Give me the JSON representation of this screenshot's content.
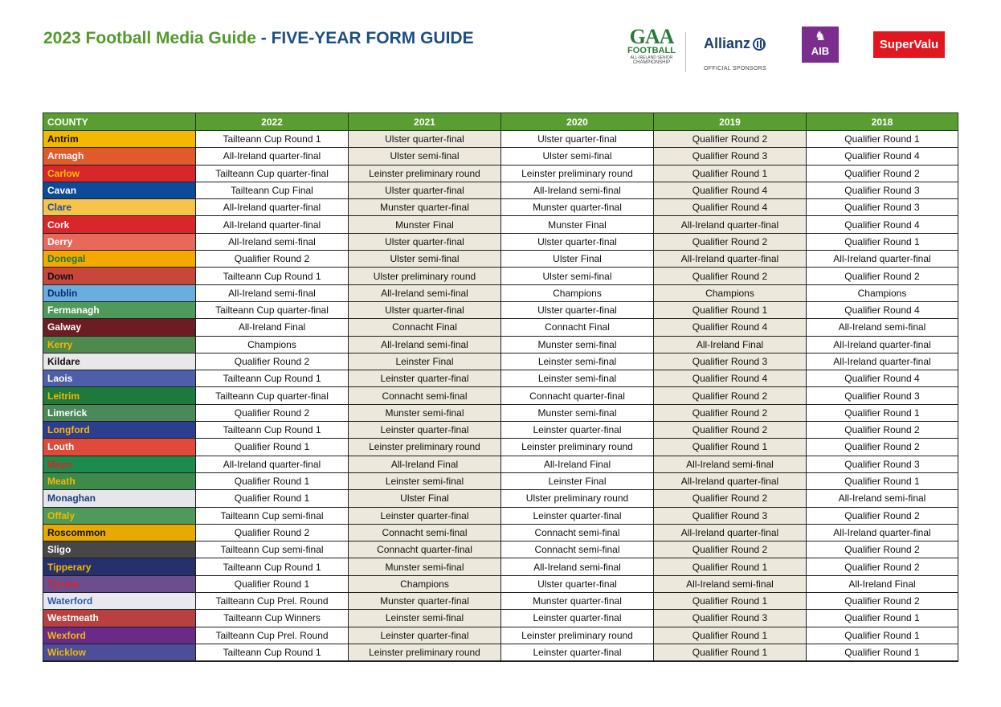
{
  "header": {
    "title_part1": "2023 Football Media Guide",
    "title_sep": " - ",
    "title_part2": "FIVE-YEAR FORM GUIDE"
  },
  "sponsors": {
    "gaa_logo": "GAA",
    "gaa_line1": "FOOTBALL",
    "gaa_line2": "ALL-IRELAND SENIOR",
    "gaa_line3": "CHAMPIONSHIP",
    "allianz": "Allianz",
    "official": "OFFICIAL SPONSORS",
    "aib": "AIB",
    "supervalu": "SuperValu"
  },
  "colors": {
    "header_green": "#5a9e32",
    "title_green": "#4f9a2b",
    "title_blue": "#1b4f85"
  },
  "table": {
    "headers": [
      "COUNTY",
      "2022",
      "2021",
      "2020",
      "2019",
      "2018"
    ],
    "rows": [
      {
        "county": "Antrim",
        "bg": "#f5b800",
        "fg": "#111111",
        "v": [
          "Tailteann Cup Round 1",
          "Ulster quarter-final",
          "Ulster quarter-final",
          "Qualifier Round 2",
          "Qualifier Round 1"
        ]
      },
      {
        "county": "Armagh",
        "bg": "#e05a2b",
        "fg": "#ffffff",
        "v": [
          "All-Ireland quarter-final",
          "Ulster semi-final",
          "Ulster semi-final",
          "Qualifier Round 3",
          "Qualifier Round 4"
        ]
      },
      {
        "county": "Carlow",
        "bg": "#d9262a",
        "fg": "#f5c400",
        "v": [
          "Tailteann Cup quarter-final",
          "Leinster preliminary round",
          "Leinster preliminary round",
          "Qualifier Round 1",
          "Qualifier Round 2"
        ]
      },
      {
        "county": "Cavan",
        "bg": "#0d4a9a",
        "fg": "#ffffff",
        "v": [
          "Tailteann Cup Final",
          "Ulster quarter-final",
          "All-Ireland semi-final",
          "Qualifier Round 4",
          "Qualifier Round 3"
        ]
      },
      {
        "county": "Clare",
        "bg": "#f7c44a",
        "fg": "#1b4f9a",
        "v": [
          "All-Ireland quarter-final",
          "Munster quarter-final",
          "Munster quarter-final",
          "Qualifier Round 4",
          "Qualifier Round 3"
        ]
      },
      {
        "county": "Cork",
        "bg": "#d9262a",
        "fg": "#ffffff",
        "v": [
          "All-Ireland quarter-final",
          "Munster Final",
          "Munster Final",
          "All-Ireland quarter-final",
          "Qualifier Round 4"
        ]
      },
      {
        "county": "Derry",
        "bg": "#e8685a",
        "fg": "#ffffff",
        "v": [
          "All-Ireland semi-final",
          "Ulster quarter-final",
          "Ulster quarter-final",
          "Qualifier Round 2",
          "Qualifier Round 1"
        ]
      },
      {
        "county": "Donegal",
        "bg": "#f5a800",
        "fg": "#1e7a3c",
        "v": [
          "Qualifier Round 2",
          "Ulster semi-final",
          "Ulster Final",
          "All-Ireland quarter-final",
          "All-Ireland quarter-final"
        ]
      },
      {
        "county": "Down",
        "bg": "#c9473a",
        "fg": "#111111",
        "v": [
          "Tailteann Cup Round 1",
          "Ulster preliminary round",
          "Ulster semi-final",
          "Qualifier Round 2",
          "Qualifier Round 2"
        ]
      },
      {
        "county": "Dublin",
        "bg": "#6aaee0",
        "fg": "#0d2a6e",
        "v": [
          "All-Ireland semi-final",
          "All-Ireland semi-final",
          "Champions",
          "Champions",
          "Champions"
        ]
      },
      {
        "county": "Fermanagh",
        "bg": "#4e9a5a",
        "fg": "#ffffff",
        "v": [
          "Tailteann Cup quarter-final",
          "Ulster quarter-final",
          "Ulster quarter-final",
          "Qualifier Round 1",
          "Qualifier Round 4"
        ]
      },
      {
        "county": "Galway",
        "bg": "#6e1c24",
        "fg": "#ffffff",
        "v": [
          "All-Ireland Final",
          "Connacht Final",
          "Connacht Final",
          "Qualifier Round 4",
          "All-Ireland semi-final"
        ]
      },
      {
        "county": "Kerry",
        "bg": "#4f8a4c",
        "fg": "#f5b800",
        "v": [
          "Champions",
          "All-Ireland semi-final",
          "Munster semi-final",
          "All-Ireland Final",
          "All-Ireland quarter-final"
        ]
      },
      {
        "county": "Kildare",
        "bg": "#e8e8e8",
        "fg": "#111111",
        "v": [
          "Qualifier Round 2",
          "Leinster Final",
          "Leinster semi-final",
          "Qualifier Round 3",
          "All-Ireland quarter-final"
        ]
      },
      {
        "county": "Laois",
        "bg": "#4d5fa8",
        "fg": "#ffffff",
        "v": [
          "Tailteann Cup Round 1",
          "Leinster quarter-final",
          "Leinster semi-final",
          "Qualifier Round 4",
          "Qualifier Round 4"
        ]
      },
      {
        "county": "Leitrim",
        "bg": "#1e7a3c",
        "fg": "#f5b800",
        "v": [
          "Tailteann Cup quarter-final",
          "Connacht semi-final",
          "Connacht quarter-final",
          "Qualifier Round 2",
          "Qualifier Round 3"
        ]
      },
      {
        "county": "Limerick",
        "bg": "#4a8a5a",
        "fg": "#ffffff",
        "v": [
          "Qualifier Round 2",
          "Munster semi-final",
          "Munster semi-final",
          "Qualifier Round 2",
          "Qualifier Round 1"
        ]
      },
      {
        "county": "Longford",
        "bg": "#2b3e8f",
        "fg": "#f5b800",
        "v": [
          "Tailteann Cup Round 1",
          "Leinster quarter-final",
          "Leinster quarter-final",
          "Qualifier Round 2",
          "Qualifier Round 2"
        ]
      },
      {
        "county": "Louth",
        "bg": "#e04a3a",
        "fg": "#ffffff",
        "v": [
          "Qualifier Round 1",
          "Leinster preliminary round",
          "Leinster preliminary round",
          "Qualifier Round 1",
          "Qualifier Round 2"
        ]
      },
      {
        "county": "Mayo",
        "bg": "#1e8a4c",
        "fg": "#d9262a",
        "v": [
          "All-Ireland quarter-final",
          "All-Ireland Final",
          "All-Ireland Final",
          "All-Ireland semi-final",
          "Qualifier Round 3"
        ]
      },
      {
        "county": "Meath",
        "bg": "#3d8a4a",
        "fg": "#f5b800",
        "v": [
          "Qualifier Round 1",
          "Leinster semi-final",
          "Leinster Final",
          "All-Ireland quarter-final",
          "Qualifier Round 1"
        ]
      },
      {
        "county": "Monaghan",
        "bg": "#e6e6ea",
        "fg": "#1b3d7a",
        "v": [
          "Qualifier Round 1",
          "Ulster Final",
          "Ulster preliminary round",
          "Qualifier Round 2",
          "All-Ireland semi-final"
        ]
      },
      {
        "county": "Offaly",
        "bg": "#4e9a5a",
        "fg": "#f5b800",
        "v": [
          "Tailteann Cup semi-final",
          "Leinster quarter-final",
          "Leinster quarter-final",
          "Qualifier Round 3",
          "Qualifier Round 2"
        ]
      },
      {
        "county": "Roscommon",
        "bg": "#e8aa00",
        "fg": "#111111",
        "v": [
          "Qualifier Round 2",
          "Connacht semi-final",
          "Connacht semi-final",
          "All-Ireland quarter-final",
          "All-Ireland quarter-final"
        ]
      },
      {
        "county": "Sligo",
        "bg": "#474747",
        "fg": "#ffffff",
        "v": [
          "Tailteann Cup semi-final",
          "Connacht quarter-final",
          "Connacht semi-final",
          "Qualifier Round 2",
          "Qualifier Round 2"
        ]
      },
      {
        "county": "Tipperary",
        "bg": "#26306e",
        "fg": "#f5b800",
        "v": [
          "Tailteann Cup Round 1",
          "Munster semi-final",
          "All-Ireland semi-final",
          "Qualifier Round 1",
          "Qualifier Round 2"
        ]
      },
      {
        "county": "Tyrone",
        "bg": "#6a4e8e",
        "fg": "#d9262a",
        "v": [
          "Qualifier Round 1",
          "Champions",
          "Ulster quarter-final",
          "All-Ireland semi-final",
          "All-Ireland Final"
        ]
      },
      {
        "county": "Waterford",
        "bg": "#e8e8ee",
        "fg": "#2a5aa8",
        "v": [
          "Tailteann Cup Prel. Round",
          "Munster quarter-final",
          "Munster quarter-final",
          "Qualifier Round 1",
          "Qualifier Round 2"
        ]
      },
      {
        "county": "Westmeath",
        "bg": "#b84040",
        "fg": "#ffffff",
        "v": [
          "Tailteann Cup Winners",
          "Leinster semi-final",
          "Leinster quarter-final",
          "Qualifier Round 3",
          "Qualifier Round 1"
        ]
      },
      {
        "county": "Wexford",
        "bg": "#6a2a8a",
        "fg": "#f5b800",
        "v": [
          "Tailteann Cup Prel. Round",
          "Leinster quarter-final",
          "Leinster preliminary round",
          "Qualifier Round 1",
          "Qualifier Round 1"
        ]
      },
      {
        "county": "Wicklow",
        "bg": "#4d4e9a",
        "fg": "#f5b800",
        "v": [
          "Tailteann Cup Round 1",
          "Leinster preliminary round",
          "Leinster quarter-final",
          "Qualifier Round 1",
          "Qualifier Round 1"
        ]
      }
    ]
  }
}
